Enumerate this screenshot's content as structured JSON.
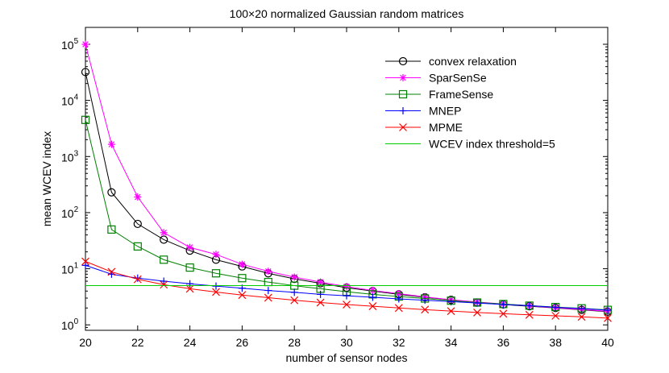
{
  "chart_data": {
    "type": "line",
    "title": "100×20 normalized Gaussian random matrices",
    "xlabel": "number of sensor nodes",
    "ylabel": "mean WCEV index",
    "x": [
      20,
      21,
      22,
      23,
      24,
      25,
      26,
      27,
      28,
      29,
      30,
      31,
      32,
      33,
      34,
      35,
      36,
      37,
      38,
      39,
      40
    ],
    "xlim": [
      20,
      40
    ],
    "xticks": [
      20,
      22,
      24,
      26,
      28,
      30,
      32,
      34,
      36,
      38,
      40
    ],
    "yscale": "log",
    "ylim": [
      0.8,
      200000
    ],
    "yticks": [
      {
        "value": 1,
        "base": "10",
        "exp": "0"
      },
      {
        "value": 10,
        "base": "10",
        "exp": "1"
      },
      {
        "value": 100,
        "base": "10",
        "exp": "2"
      },
      {
        "value": 1000,
        "base": "10",
        "exp": "3"
      },
      {
        "value": 10000,
        "base": "10",
        "exp": "4"
      },
      {
        "value": 100000,
        "base": "10",
        "exp": "5"
      }
    ],
    "grid": false,
    "legend_position": "top-right",
    "series": [
      {
        "name": "convex relaxation",
        "color": "#000000",
        "marker": "circle",
        "values": [
          32000,
          230,
          63,
          33,
          21,
          14.5,
          11,
          8.3,
          6.6,
          5.5,
          4.6,
          4.0,
          3.5,
          3.1,
          2.8,
          2.5,
          2.3,
          2.15,
          2.0,
          1.85,
          1.72
        ]
      },
      {
        "name": "SparSenSe",
        "color": "#ff00ff",
        "marker": "star",
        "values": [
          100000,
          1650,
          190,
          44,
          24,
          18,
          12,
          9,
          7.1,
          5.8,
          4.8,
          4.1,
          3.6,
          3.15,
          2.8,
          2.55,
          2.35,
          2.18,
          2.02,
          1.88,
          1.75
        ]
      },
      {
        "name": "FrameSense",
        "color": "#008000",
        "marker": "square",
        "values": [
          4500,
          50,
          25,
          14.5,
          10.5,
          8.3,
          6.8,
          5.8,
          5.0,
          4.4,
          3.9,
          3.5,
          3.2,
          2.95,
          2.7,
          2.5,
          2.35,
          2.2,
          2.08,
          1.97,
          1.85
        ]
      },
      {
        "name": "MNEP",
        "color": "#0000ff",
        "marker": "plus",
        "values": [
          11.5,
          8,
          6.8,
          6,
          5.4,
          4.9,
          4.5,
          4.1,
          3.8,
          3.5,
          3.3,
          3.1,
          2.9,
          2.75,
          2.6,
          2.45,
          2.3,
          2.2,
          2.05,
          1.95,
          1.83
        ]
      },
      {
        "name": "MPME",
        "color": "#ff0000",
        "marker": "x",
        "values": [
          13.5,
          8.8,
          6.5,
          5.2,
          4.4,
          3.85,
          3.4,
          3.05,
          2.75,
          2.5,
          2.3,
          2.15,
          2.0,
          1.87,
          1.76,
          1.66,
          1.58,
          1.51,
          1.45,
          1.39,
          1.32
        ]
      },
      {
        "name": "WCEV index threshold=5",
        "color": "#00cc00",
        "marker": "none",
        "values": [
          5,
          5,
          5,
          5,
          5,
          5,
          5,
          5,
          5,
          5,
          5,
          5,
          5,
          5,
          5,
          5,
          5,
          5,
          5,
          5,
          5
        ]
      }
    ]
  }
}
